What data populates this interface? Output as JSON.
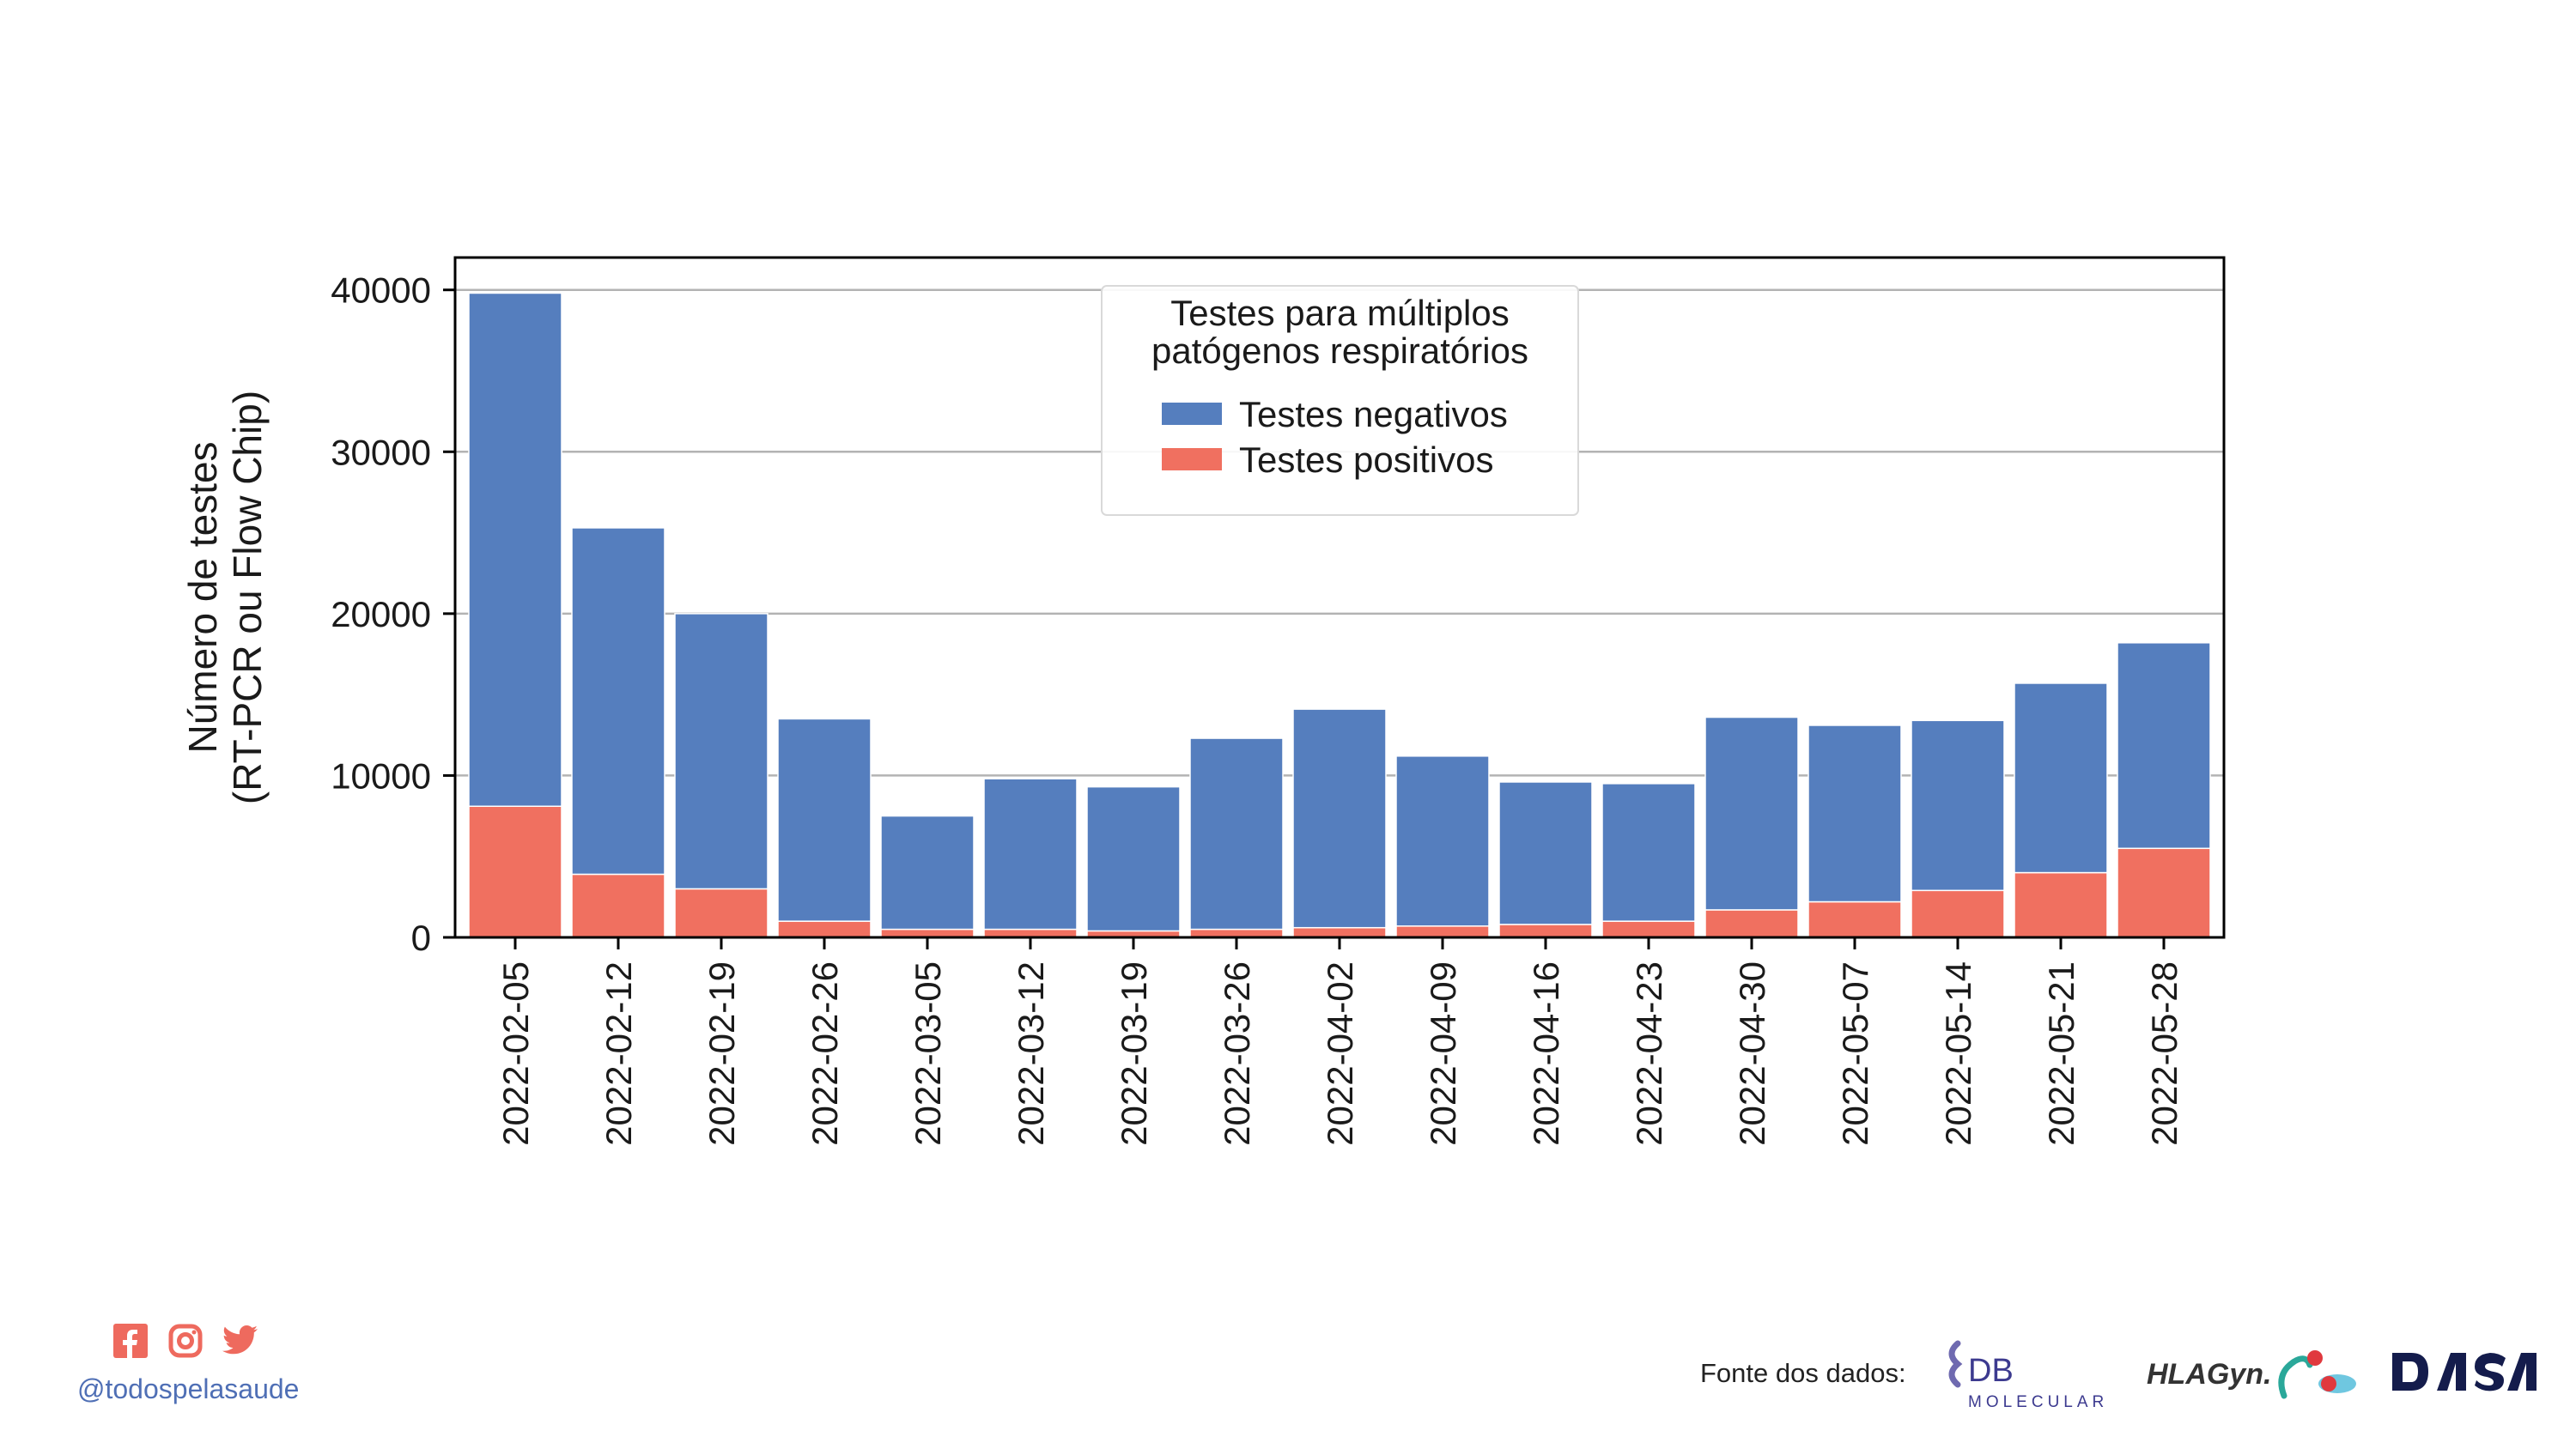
{
  "chart_data": {
    "type": "bar",
    "stacked": true,
    "ylabel": [
      "Número de testes",
      "(RT-PCR ou Flow Chip)"
    ],
    "xlabel": "",
    "ylim": [
      0,
      42000
    ],
    "yticks": [
      0,
      10000,
      20000,
      30000,
      40000
    ],
    "grid": "horizontal",
    "legend_placement": "top-center",
    "legend_title": [
      "Testes para múltiplos",
      "patógenos respiratórios"
    ],
    "categories": [
      "2022-02-05",
      "2022-02-12",
      "2022-02-19",
      "2022-02-26",
      "2022-03-05",
      "2022-03-12",
      "2022-03-19",
      "2022-03-26",
      "2022-04-02",
      "2022-04-09",
      "2022-04-16",
      "2022-04-23",
      "2022-04-30",
      "2022-05-07",
      "2022-05-14",
      "2022-05-21",
      "2022-05-28"
    ],
    "series": [
      {
        "name": "Testes positivos",
        "color": "#f07060",
        "values": [
          8100,
          3900,
          3000,
          1000,
          500,
          500,
          400,
          500,
          600,
          700,
          800,
          1000,
          1700,
          2200,
          2900,
          4000,
          5500
        ]
      },
      {
        "name": "Testes negativos",
        "color": "#557ebe",
        "values": [
          31700,
          21400,
          17000,
          12500,
          7000,
          9300,
          8900,
          11800,
          13500,
          10500,
          8800,
          8500,
          11900,
          10900,
          10500,
          11700,
          12700
        ]
      }
    ]
  },
  "footer": {
    "handle": "@todospelasaude",
    "source_label": "Fonte dos dados:",
    "social_icons": [
      "facebook-icon",
      "instagram-icon",
      "twitter-icon"
    ],
    "social_color": "#ee6a5e",
    "logos": {
      "db_molecular": {
        "mark": "DB",
        "sub": "MOLECULAR"
      },
      "hlagyn": {
        "mark": "HLAGyn."
      },
      "dasa": {
        "mark": "DASA"
      }
    }
  }
}
